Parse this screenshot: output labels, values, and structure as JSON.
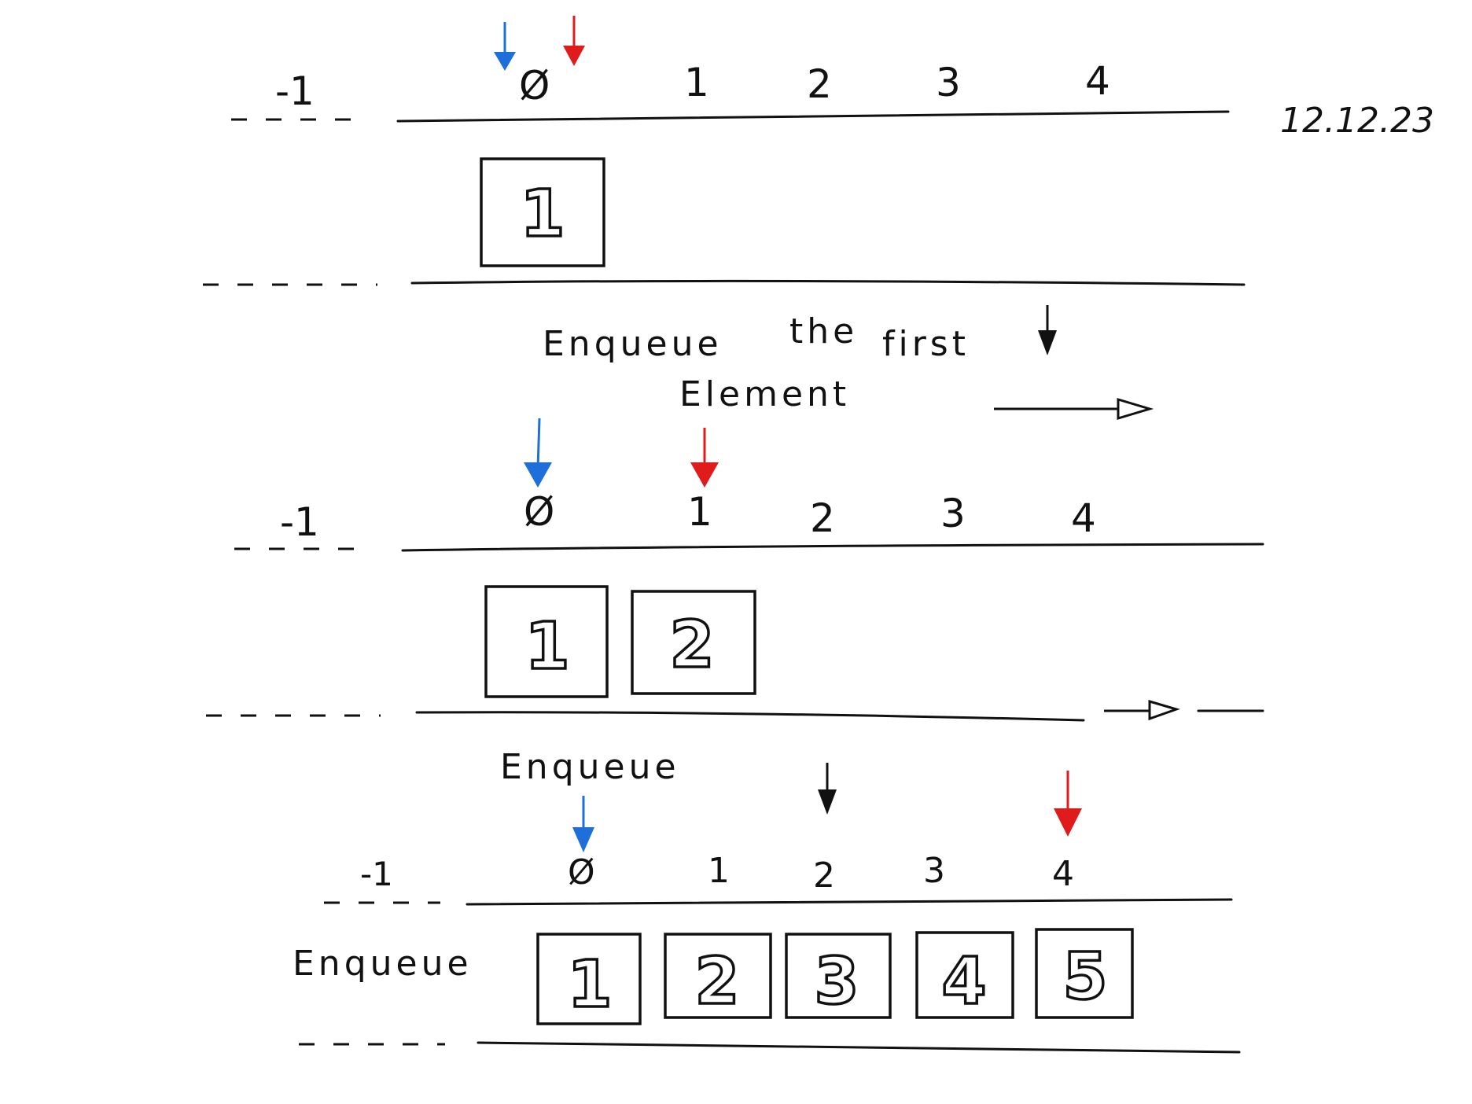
{
  "date": "12.12.23",
  "colors": {
    "front_pointer": "#1e6fd9",
    "rear_pointer": "#e01b1b",
    "ink": "#111111"
  },
  "stages": [
    {
      "indices": [
        "-1",
        "Ø",
        "1",
        "2",
        "3",
        "4"
      ],
      "cells": [
        "1"
      ],
      "caption": [
        "Enqueue",
        "the",
        "first",
        "Element"
      ]
    },
    {
      "indices": [
        "-1",
        "Ø",
        "1",
        "2",
        "3",
        "4"
      ],
      "cells": [
        "1",
        "2"
      ],
      "caption": [
        "Enqueue"
      ]
    },
    {
      "indices": [
        "-1",
        "Ø",
        "1",
        "2",
        "3",
        "4"
      ],
      "cells": [
        "1",
        "2",
        "3",
        "4",
        "5"
      ],
      "caption": [
        "Enqueue"
      ]
    }
  ]
}
